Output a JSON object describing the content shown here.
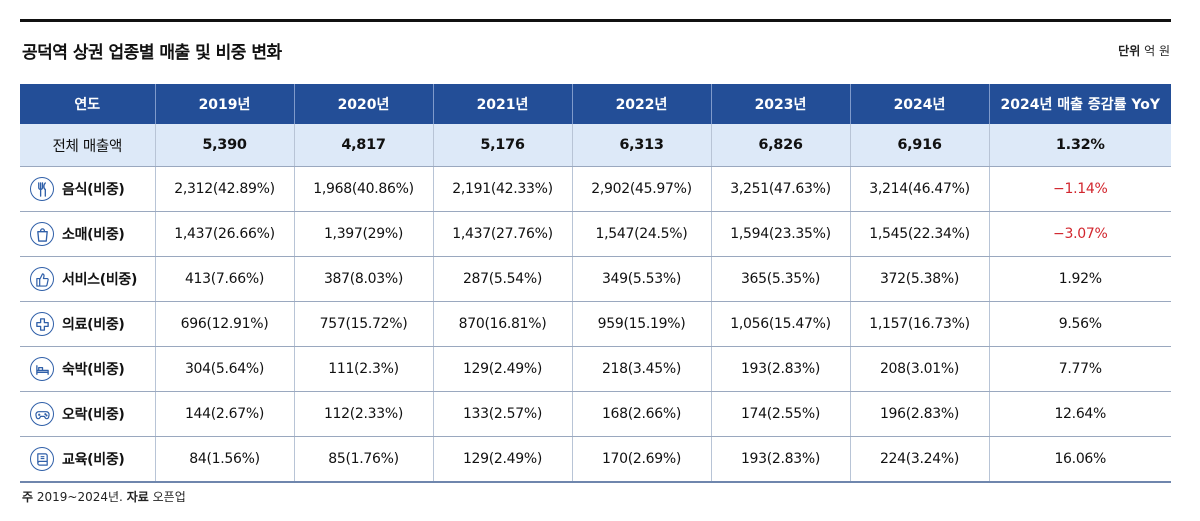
{
  "title": "공덕역 상권 업종별 매출 및 비중 변화",
  "unit": {
    "label": "단위",
    "value": "억 원"
  },
  "footnote": {
    "note_label": "주",
    "note": "2019~2024년.",
    "source_label": "자료",
    "source": "오픈업"
  },
  "chart_data": {
    "type": "table",
    "columns": [
      "연도",
      "2019년",
      "2020년",
      "2021년",
      "2022년",
      "2023년",
      "2024년",
      "2024년 매출 증감률 YoY"
    ],
    "total_row": {
      "label": "전체 매출액",
      "values": [
        "5,390",
        "4,817",
        "5,176",
        "6,313",
        "6,826",
        "6,916"
      ],
      "yoy": "1.32%"
    },
    "rows": [
      {
        "label": "음식(비중)",
        "icon": "utensils-icon",
        "values": [
          "2,312(42.89%)",
          "1,968(40.86%)",
          "2,191(42.33%)",
          "2,902(45.97%)",
          "3,251(47.63%)",
          "3,214(46.47%)"
        ],
        "yoy": "−1.14%",
        "negative": true
      },
      {
        "label": "소매(비중)",
        "icon": "shopping-bag-icon",
        "values": [
          "1,437(26.66%)",
          "1,397(29%)",
          "1,437(27.76%)",
          "1,547(24.5%)",
          "1,594(23.35%)",
          "1,545(22.34%)"
        ],
        "yoy": "−3.07%",
        "negative": true
      },
      {
        "label": "서비스(비중)",
        "icon": "thumbs-up-icon",
        "values": [
          "413(7.66%)",
          "387(8.03%)",
          "287(5.54%)",
          "349(5.53%)",
          "365(5.35%)",
          "372(5.38%)"
        ],
        "yoy": "1.92%",
        "negative": false
      },
      {
        "label": "의료(비중)",
        "icon": "medical-cross-icon",
        "values": [
          "696(12.91%)",
          "757(15.72%)",
          "870(16.81%)",
          "959(15.19%)",
          "1,056(15.47%)",
          "1,157(16.73%)"
        ],
        "yoy": "9.56%",
        "negative": false
      },
      {
        "label": "숙박(비중)",
        "icon": "bed-icon",
        "values": [
          "304(5.64%)",
          "111(2.3%)",
          "129(2.49%)",
          "218(3.45%)",
          "193(2.83%)",
          "208(3.01%)"
        ],
        "yoy": "7.77%",
        "negative": false
      },
      {
        "label": "오락(비중)",
        "icon": "gamepad-icon",
        "values": [
          "144(2.67%)",
          "112(2.33%)",
          "133(2.57%)",
          "168(2.66%)",
          "174(2.55%)",
          "196(2.83%)"
        ],
        "yoy": "12.64%",
        "negative": false
      },
      {
        "label": "교육(비중)",
        "icon": "book-icon",
        "values": [
          "84(1.56%)",
          "85(1.76%)",
          "129(2.49%)",
          "170(2.69%)",
          "193(2.83%)",
          "224(3.24%)"
        ],
        "yoy": "16.06%",
        "negative": false
      }
    ],
    "colors": {
      "header_bg": "#234e97",
      "total_bg": "#dde9f8",
      "negative": "#d2262e",
      "icon": "#2f5fa8"
    }
  }
}
